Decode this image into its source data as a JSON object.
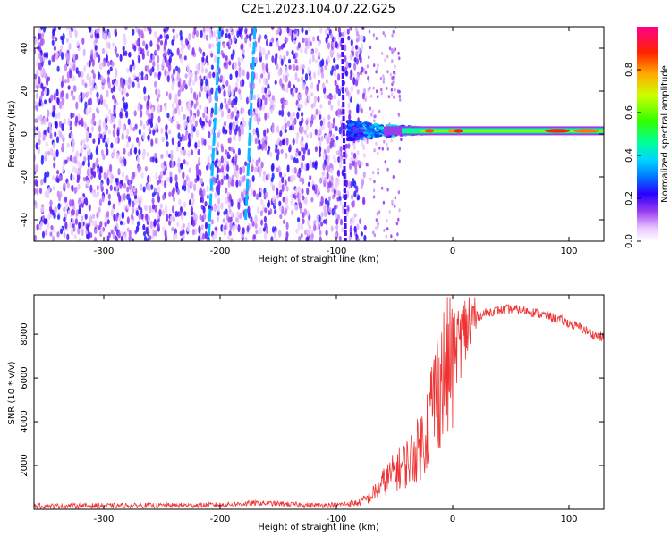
{
  "title": "C2E1.2023.104.07.22.G25",
  "colorbar_label": "Normalized spectral amplitude",
  "chart_data": [
    {
      "type": "heatmap",
      "xlabel": "Height of straight line (km)",
      "ylabel": "Frequency (Hz)",
      "xlim": [
        -360,
        130
      ],
      "ylim": [
        -50,
        50
      ],
      "xticks": [
        -300,
        -200,
        -100,
        0,
        100
      ],
      "yticks": [
        -40,
        -20,
        0,
        20,
        40
      ],
      "colorbar": {
        "min": 0.0,
        "max": 1.0,
        "ticks": [
          0.0,
          0.2,
          0.4,
          0.6,
          0.8
        ]
      },
      "features": {
        "noise_region_x": [
          -360,
          -75
        ],
        "carrier_start_x": -90,
        "carrier_freq_hz": 1.5,
        "tilted_streaks": [
          {
            "x": [
              -200,
              -210
            ],
            "y": [
              50,
              -50
            ]
          },
          {
            "x": [
              -170,
              -178
            ],
            "y": [
              50,
              -40
            ]
          },
          {
            "x": [
              -95,
              -92
            ],
            "y": [
              45,
              -50
            ]
          }
        ]
      },
      "grid": false
    },
    {
      "type": "line",
      "xlabel": "Height of straight line (km)",
      "ylabel": "SNR (10 * v/v)",
      "xlim": [
        -360,
        130
      ],
      "ylim": [
        0,
        9800
      ],
      "xticks": [
        -300,
        -200,
        -100,
        0,
        100
      ],
      "yticks": [
        2000,
        4000,
        6000,
        8000
      ],
      "color": "#ee3333",
      "series": [
        {
          "x": [
            -360,
            -300,
            -250,
            -200,
            -170,
            -150,
            -120,
            -100,
            -80,
            -70,
            -60,
            -50,
            -40,
            -30,
            -25,
            -20,
            -15,
            -10,
            -5,
            0,
            5,
            10,
            15,
            20,
            30,
            40,
            50,
            60,
            70,
            80,
            90,
            100,
            110,
            120,
            130
          ],
          "values": [
            150,
            160,
            170,
            200,
            280,
            250,
            180,
            200,
            300,
            600,
            1200,
            1700,
            2100,
            2700,
            3200,
            4200,
            5400,
            6000,
            6200,
            7000,
            7600,
            8100,
            8500,
            8800,
            9000,
            9100,
            9150,
            9100,
            9000,
            8850,
            8700,
            8500,
            8300,
            8000,
            7850
          ]
        }
      ],
      "grid": false
    }
  ]
}
